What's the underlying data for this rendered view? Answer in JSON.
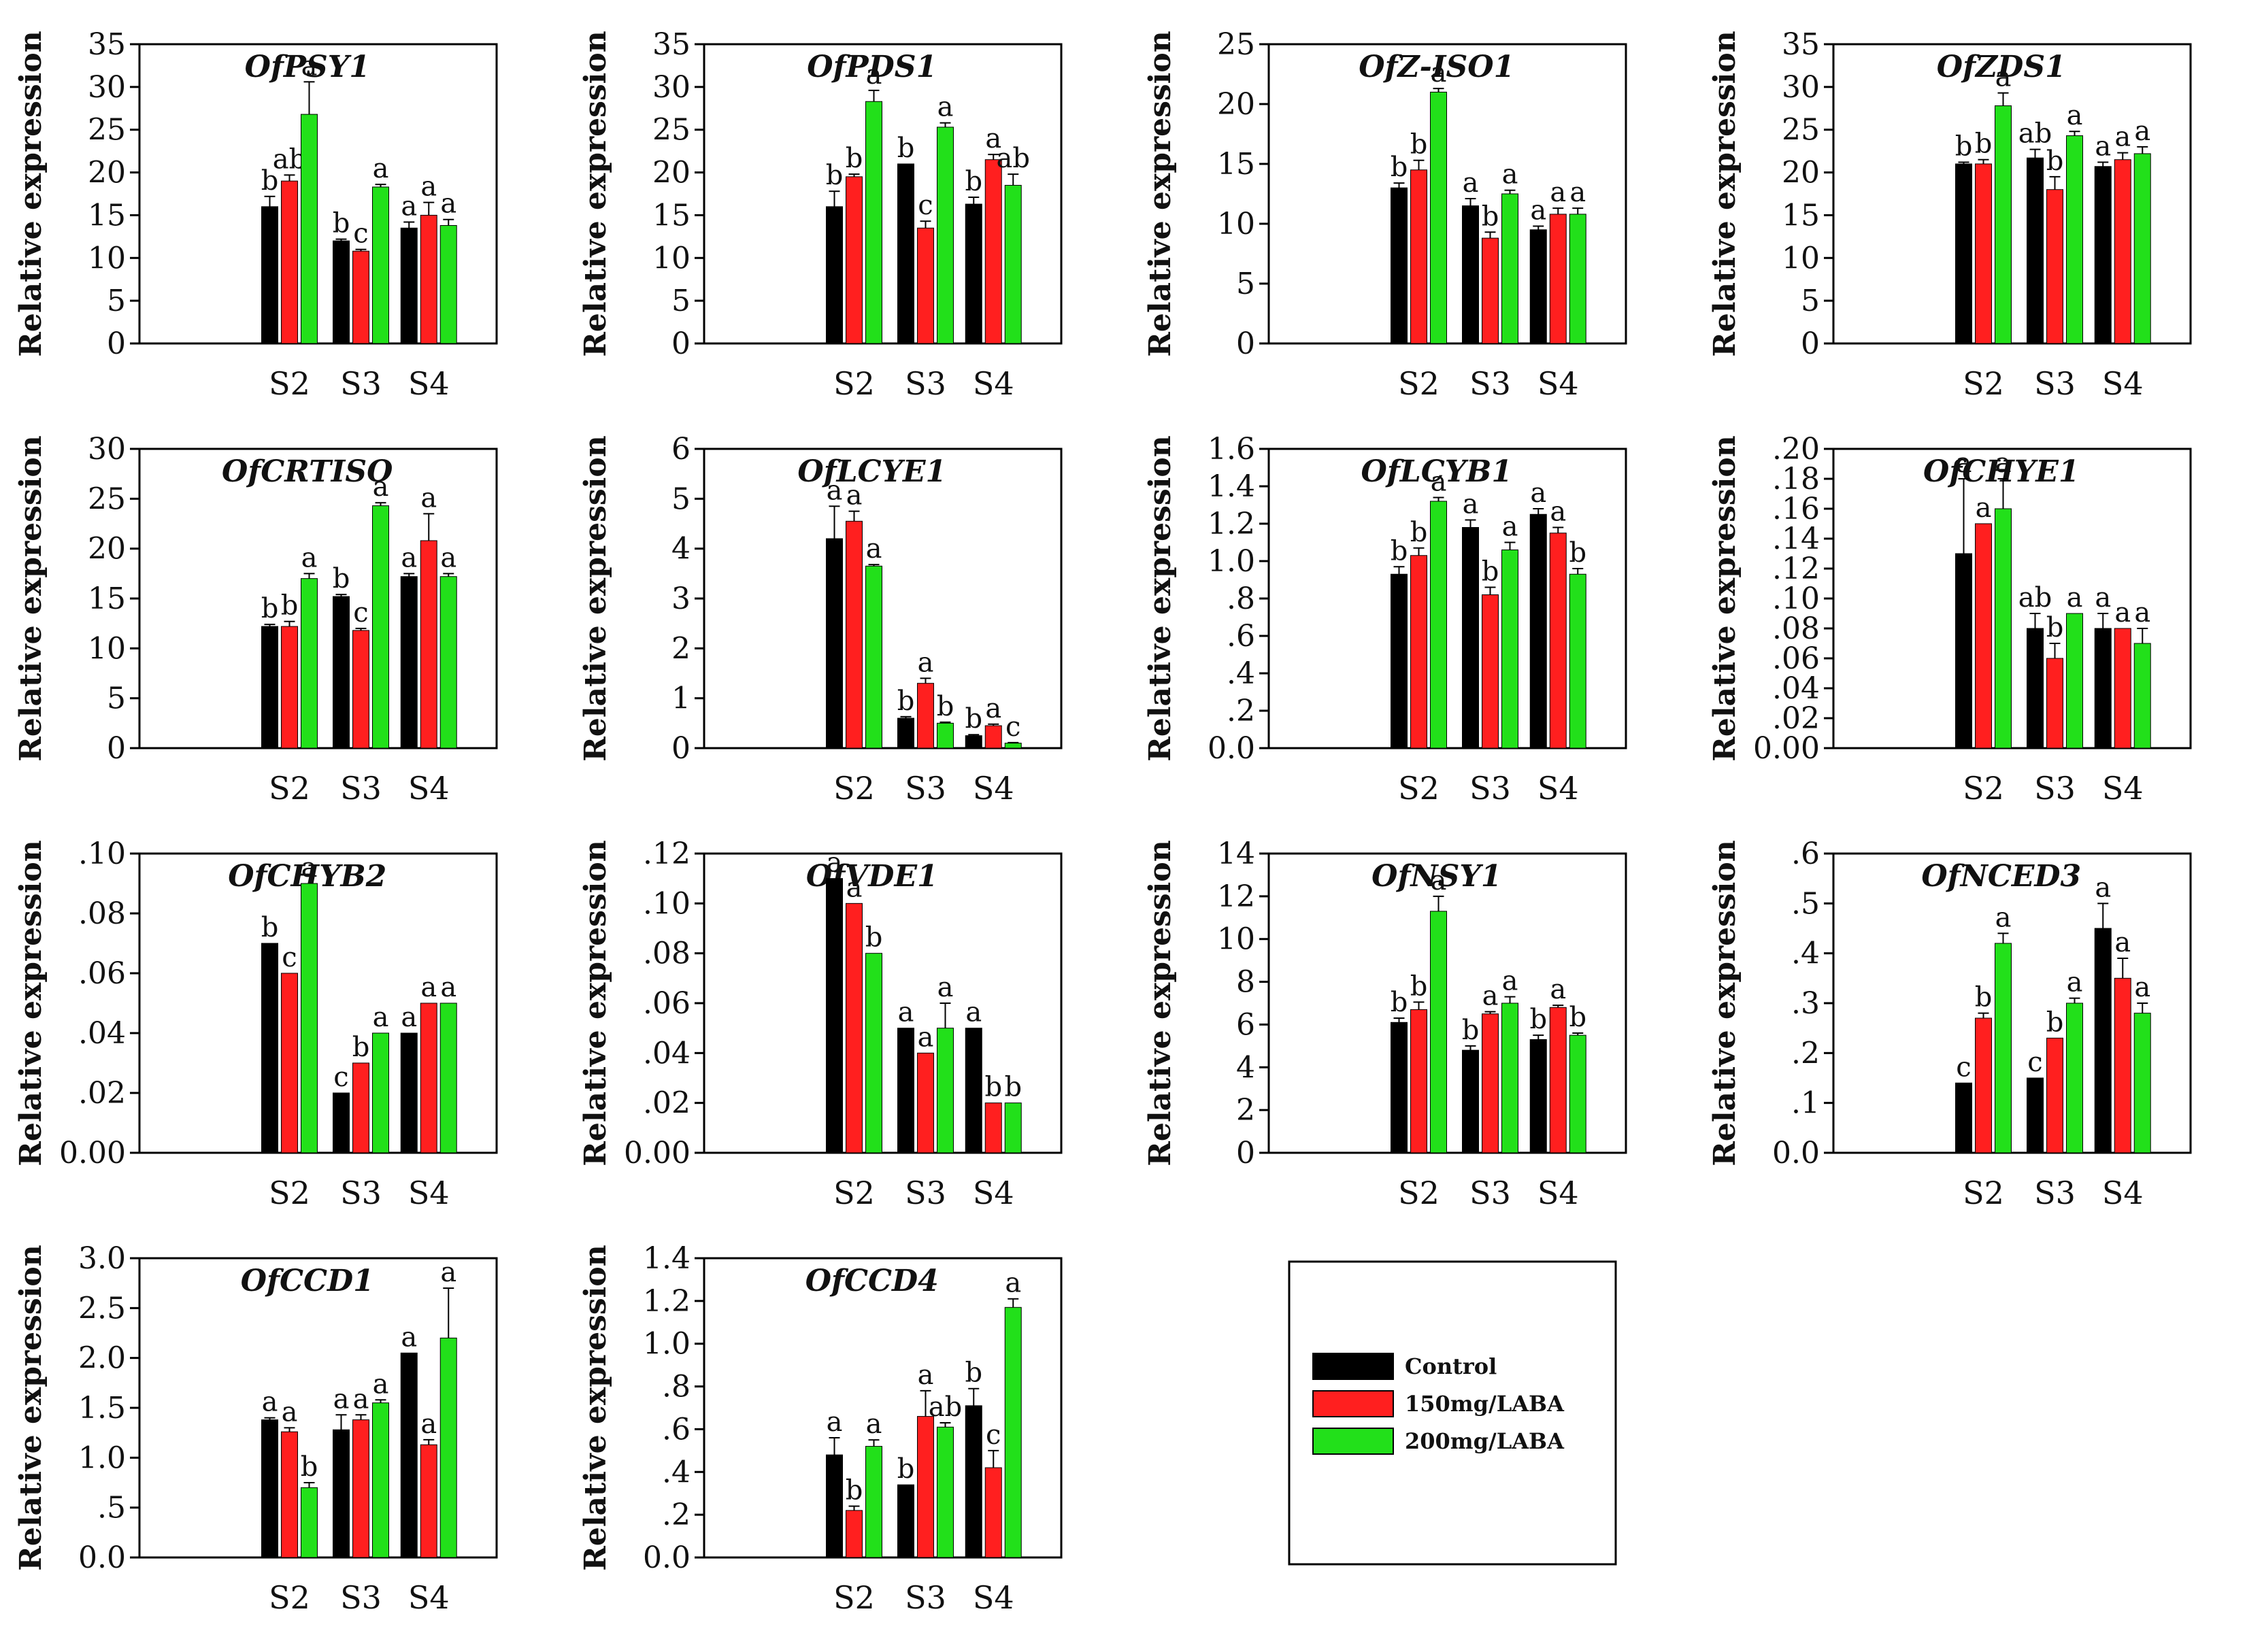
{
  "series_colors": {
    "Control": "#000000",
    "150mg/LABA": "#ff1f1f",
    "200mg/LABA": "#22e01a"
  },
  "legend": {
    "items": [
      {
        "label": "Control",
        "color": "#000000"
      },
      {
        "label": "150mg/LABA",
        "color": "#ff1f1f"
      },
      {
        "label": "200mg/LABA",
        "color": "#22e01a"
      }
    ]
  },
  "chart_data": [
    {
      "type": "bar",
      "title": "OfPSY1",
      "ylabel": "Relative expression",
      "categories": [
        "S2",
        "S3",
        "S4"
      ],
      "ylim": [
        0,
        35
      ],
      "yticks": [
        "0",
        "5",
        "10",
        "15",
        "20",
        "25",
        "30",
        "35"
      ],
      "series": [
        {
          "name": "Control",
          "values": [
            16,
            12,
            13.5
          ],
          "errors": [
            1.2,
            0.2,
            0.7
          ],
          "letters": [
            "b",
            "b",
            "a"
          ]
        },
        {
          "name": "150mg/LABA",
          "values": [
            19,
            10.8,
            15
          ],
          "errors": [
            0.7,
            0.2,
            1.5
          ],
          "letters": [
            "ab",
            "c",
            "a"
          ]
        },
        {
          "name": "200mg/LABA",
          "values": [
            26.8,
            18.3,
            13.8
          ],
          "errors": [
            3.8,
            0.3,
            0.7
          ],
          "letters": [
            "a",
            "a",
            "a"
          ]
        }
      ]
    },
    {
      "type": "bar",
      "title": "OfPDS1",
      "ylabel": "Relative expression",
      "categories": [
        "S2",
        "S3",
        "S4"
      ],
      "ylim": [
        0,
        35
      ],
      "yticks": [
        "0",
        "5",
        "10",
        "15",
        "20",
        "25",
        "30",
        "35"
      ],
      "series": [
        {
          "name": "Control",
          "values": [
            16,
            21,
            16.3
          ],
          "errors": [
            1.8,
            0,
            0.8
          ],
          "letters": [
            "b",
            "b",
            "b"
          ]
        },
        {
          "name": "150mg/LABA",
          "values": [
            19.5,
            13.5,
            21.5
          ],
          "errors": [
            0.3,
            0.8,
            0.6
          ],
          "letters": [
            "b",
            "c",
            "a"
          ]
        },
        {
          "name": "200mg/LABA",
          "values": [
            28.3,
            25.3,
            18.5
          ],
          "errors": [
            1.3,
            0.5,
            1.3
          ],
          "letters": [
            "a",
            "a",
            "ab"
          ]
        }
      ]
    },
    {
      "type": "bar",
      "title": "OfZ-ISO1",
      "ylabel": "Relative expression",
      "categories": [
        "S2",
        "S3",
        "S4"
      ],
      "ylim": [
        0,
        25
      ],
      "yticks": [
        "0",
        "5",
        "10",
        "15",
        "20",
        "25"
      ],
      "series": [
        {
          "name": "Control",
          "values": [
            13,
            11.5,
            9.5
          ],
          "errors": [
            0.4,
            0.6,
            0.3
          ],
          "letters": [
            "b",
            "a",
            "a"
          ]
        },
        {
          "name": "150mg/LABA",
          "values": [
            14.5,
            8.8,
            10.8
          ],
          "errors": [
            0.8,
            0.5,
            0.5
          ],
          "letters": [
            "b",
            "b",
            "a"
          ]
        },
        {
          "name": "200mg/LABA",
          "values": [
            21,
            12.5,
            10.8
          ],
          "errors": [
            0.3,
            0.3,
            0.5
          ],
          "letters": [
            "a",
            "a",
            "a"
          ]
        }
      ]
    },
    {
      "type": "bar",
      "title": "OfZDS1",
      "ylabel": "Relative expression",
      "categories": [
        "S2",
        "S3",
        "S4"
      ],
      "ylim": [
        0,
        35
      ],
      "yticks": [
        "0",
        "5",
        "10",
        "15",
        "20",
        "25",
        "30",
        "35"
      ],
      "series": [
        {
          "name": "Control",
          "values": [
            21,
            21.7,
            20.7
          ],
          "errors": [
            0.2,
            1,
            0.5
          ],
          "letters": [
            "b",
            "ab",
            "a"
          ]
        },
        {
          "name": "150mg/LABA",
          "values": [
            21,
            18,
            21.5
          ],
          "errors": [
            0.5,
            1.5,
            0.8
          ],
          "letters": [
            "b",
            "b",
            "a"
          ]
        },
        {
          "name": "200mg/LABA",
          "values": [
            27.8,
            24.3,
            22.2
          ],
          "errors": [
            1.5,
            0.5,
            0.8
          ],
          "letters": [
            "a",
            "a",
            "a"
          ]
        }
      ]
    },
    {
      "type": "bar",
      "title": "OfCRTISO",
      "ylabel": "Relative expression",
      "categories": [
        "S2",
        "S3",
        "S4"
      ],
      "ylim": [
        0,
        30
      ],
      "yticks": [
        "0",
        "5",
        "10",
        "15",
        "20",
        "25",
        "30"
      ],
      "series": [
        {
          "name": "Control",
          "values": [
            12.2,
            15.2,
            17.2
          ],
          "errors": [
            0.2,
            0.2,
            0.3
          ],
          "letters": [
            "b",
            "b",
            "a"
          ]
        },
        {
          "name": "150mg/LABA",
          "values": [
            12.2,
            11.8,
            20.8
          ],
          "errors": [
            0.5,
            0.2,
            2.7
          ],
          "letters": [
            "b",
            "c",
            "a"
          ]
        },
        {
          "name": "200mg/LABA",
          "values": [
            17,
            24.3,
            17.2
          ],
          "errors": [
            0.5,
            0.3,
            0.3
          ],
          "letters": [
            "a",
            "a",
            "a"
          ]
        }
      ]
    },
    {
      "type": "bar",
      "title": "OfLCYE1",
      "ylabel": "Relative expression",
      "categories": [
        "S2",
        "S3",
        "S4"
      ],
      "ylim": [
        0,
        6
      ],
      "yticks": [
        "0",
        "1",
        "2",
        "3",
        "4",
        "5",
        "6"
      ],
      "series": [
        {
          "name": "Control",
          "values": [
            4.2,
            0.6,
            0.25
          ],
          "errors": [
            0.65,
            0.03,
            0.02
          ],
          "letters": [
            "a",
            "b",
            "b"
          ]
        },
        {
          "name": "150mg/LABA",
          "values": [
            4.55,
            1.3,
            0.45
          ],
          "errors": [
            0.2,
            0.1,
            0.03
          ],
          "letters": [
            "a",
            "a",
            "a"
          ]
        },
        {
          "name": "200mg/LABA",
          "values": [
            3.65,
            0.5,
            0.1
          ],
          "errors": [
            0.03,
            0.02,
            0.01
          ],
          "letters": [
            "a",
            "b",
            "c"
          ]
        }
      ]
    },
    {
      "type": "bar",
      "title": "OfLCYB1",
      "ylabel": "Relative expression",
      "categories": [
        "S2",
        "S3",
        "S4"
      ],
      "ylim": [
        0,
        1.6
      ],
      "yticks": [
        "0.0",
        ".2",
        ".4",
        ".6",
        ".8",
        "1.0",
        "1.2",
        "1.4",
        "1.6"
      ],
      "series": [
        {
          "name": "Control",
          "values": [
            0.93,
            1.18,
            1.25
          ],
          "errors": [
            0.04,
            0.04,
            0.03
          ],
          "letters": [
            "b",
            "a",
            "a"
          ]
        },
        {
          "name": "150mg/LABA",
          "values": [
            1.03,
            0.82,
            1.15
          ],
          "errors": [
            0.04,
            0.04,
            0.03
          ],
          "letters": [
            "b",
            "b",
            "a"
          ]
        },
        {
          "name": "200mg/LABA",
          "values": [
            1.32,
            1.06,
            0.93
          ],
          "errors": [
            0.02,
            0.04,
            0.03
          ],
          "letters": [
            "a",
            "a",
            "b"
          ]
        }
      ]
    },
    {
      "type": "bar",
      "title": "OfCHYE1",
      "ylabel": "Relative expression",
      "categories": [
        "S2",
        "S3",
        "S4"
      ],
      "ylim": [
        0,
        0.2
      ],
      "yticks": [
        "0.00",
        ".02",
        ".04",
        ".06",
        ".08",
        ".10",
        ".12",
        ".14",
        ".16",
        ".18",
        ".20"
      ],
      "series": [
        {
          "name": "Control",
          "values": [
            0.13,
            0.08,
            0.08
          ],
          "errors": [
            0.05,
            0.01,
            0.01
          ],
          "letters": [
            "a",
            "ab",
            "a"
          ]
        },
        {
          "name": "150mg/LABA",
          "values": [
            0.15,
            0.06,
            0.08
          ],
          "errors": [
            0,
            0.01,
            0
          ],
          "letters": [
            "a",
            "b",
            "a"
          ]
        },
        {
          "name": "200mg/LABA",
          "values": [
            0.16,
            0.09,
            0.07
          ],
          "errors": [
            0.02,
            0,
            0.01
          ],
          "letters": [
            "a",
            "a",
            "a"
          ]
        }
      ]
    },
    {
      "type": "bar",
      "title": "OfCHYB2",
      "ylabel": "Relative expression",
      "categories": [
        "S2",
        "S3",
        "S4"
      ],
      "ylim": [
        0,
        0.1
      ],
      "yticks": [
        "0.00",
        ".02",
        ".04",
        ".06",
        ".08",
        ".10"
      ],
      "series": [
        {
          "name": "Control",
          "values": [
            0.07,
            0.02,
            0.04
          ],
          "errors": [
            0,
            0,
            0
          ],
          "letters": [
            "b",
            "c",
            "a"
          ]
        },
        {
          "name": "150mg/LABA",
          "values": [
            0.06,
            0.03,
            0.05
          ],
          "errors": [
            0,
            0,
            0
          ],
          "letters": [
            "c",
            "b",
            "a"
          ]
        },
        {
          "name": "200mg/LABA",
          "values": [
            0.09,
            0.04,
            0.05
          ],
          "errors": [
            0,
            0,
            0
          ],
          "letters": [
            "a",
            "a",
            "a"
          ]
        }
      ]
    },
    {
      "type": "bar",
      "title": "OfVDE1",
      "ylabel": "Relative expression",
      "categories": [
        "S2",
        "S3",
        "S4"
      ],
      "ylim": [
        0,
        0.12
      ],
      "yticks": [
        "0.00",
        ".02",
        ".04",
        ".06",
        ".08",
        ".10",
        ".12"
      ],
      "series": [
        {
          "name": "Control",
          "values": [
            0.11,
            0.05,
            0.05
          ],
          "errors": [
            0,
            0,
            0
          ],
          "letters": [
            "a",
            "a",
            "a"
          ]
        },
        {
          "name": "150mg/LABA",
          "values": [
            0.1,
            0.04,
            0.02
          ],
          "errors": [
            0,
            0,
            0
          ],
          "letters": [
            "a",
            "a",
            "b"
          ]
        },
        {
          "name": "200mg/LABA",
          "values": [
            0.08,
            0.05,
            0.02
          ],
          "errors": [
            0,
            0.01,
            0
          ],
          "letters": [
            "b",
            "a",
            "b"
          ]
        }
      ]
    },
    {
      "type": "bar",
      "title": "OfNSY1",
      "ylabel": "Relative expression",
      "categories": [
        "S2",
        "S3",
        "S4"
      ],
      "ylim": [
        0,
        14
      ],
      "yticks": [
        "0",
        "2",
        "4",
        "6",
        "8",
        "10",
        "12",
        "14"
      ],
      "series": [
        {
          "name": "Control",
          "values": [
            6.1,
            4.8,
            5.3
          ],
          "errors": [
            0.2,
            0.2,
            0.2
          ],
          "letters": [
            "b",
            "b",
            "b"
          ]
        },
        {
          "name": "150mg/LABA",
          "values": [
            6.7,
            6.5,
            6.8
          ],
          "errors": [
            0.35,
            0.1,
            0.1
          ],
          "letters": [
            "b",
            "a",
            "a"
          ]
        },
        {
          "name": "200mg/LABA",
          "values": [
            11.3,
            7,
            5.5
          ],
          "errors": [
            0.7,
            0.3,
            0.1
          ],
          "letters": [
            "a",
            "a",
            "b"
          ]
        }
      ]
    },
    {
      "type": "bar",
      "title": "OfNCED3",
      "ylabel": "Relative expression",
      "categories": [
        "S2",
        "S3",
        "S4"
      ],
      "ylim": [
        0,
        0.6
      ],
      "yticks": [
        "0.0",
        ".1",
        ".2",
        ".3",
        ".4",
        ".5",
        ".6"
      ],
      "series": [
        {
          "name": "Control",
          "values": [
            0.14,
            0.15,
            0.45
          ],
          "errors": [
            0,
            0,
            0.05
          ],
          "letters": [
            "c",
            "c",
            "a"
          ]
        },
        {
          "name": "150mg/LABA",
          "values": [
            0.27,
            0.23,
            0.35
          ],
          "errors": [
            0.01,
            0,
            0.04
          ],
          "letters": [
            "b",
            "b",
            "a"
          ]
        },
        {
          "name": "200mg/LABA",
          "values": [
            0.42,
            0.3,
            0.28
          ],
          "errors": [
            0.02,
            0.01,
            0.02
          ],
          "letters": [
            "a",
            "a",
            "a"
          ]
        }
      ]
    },
    {
      "type": "bar",
      "title": "OfCCD1",
      "ylabel": "Relative expression",
      "categories": [
        "S2",
        "S3",
        "S4"
      ],
      "ylim": [
        0,
        3
      ],
      "yticks": [
        "0.0",
        ".5",
        "1.0",
        "1.5",
        "2.0",
        "2.5",
        "3.0"
      ],
      "series": [
        {
          "name": "Control",
          "values": [
            1.38,
            1.28,
            2.05
          ],
          "errors": [
            0.02,
            0.15,
            0
          ],
          "letters": [
            "a",
            "a",
            "a"
          ]
        },
        {
          "name": "150mg/LABA",
          "values": [
            1.26,
            1.38,
            1.13
          ],
          "errors": [
            0.04,
            0.05,
            0.05
          ],
          "letters": [
            "a",
            "a",
            "a"
          ]
        },
        {
          "name": "200mg/LABA",
          "values": [
            0.7,
            1.55,
            2.2
          ],
          "errors": [
            0.05,
            0.03,
            0.5
          ],
          "letters": [
            "b",
            "a",
            "a"
          ]
        }
      ]
    },
    {
      "type": "bar",
      "title": "OfCCD4",
      "ylabel": "Relative expression",
      "categories": [
        "S2",
        "S3",
        "S4"
      ],
      "ylim": [
        0,
        1.4
      ],
      "yticks": [
        "0.0",
        ".2",
        ".4",
        ".6",
        ".8",
        "1.0",
        "1.2",
        "1.4"
      ],
      "series": [
        {
          "name": "Control",
          "values": [
            0.48,
            0.34,
            0.71
          ],
          "errors": [
            0.08,
            0,
            0.08
          ],
          "letters": [
            "a",
            "b",
            "b"
          ]
        },
        {
          "name": "150mg/LABA",
          "values": [
            0.22,
            0.66,
            0.42
          ],
          "errors": [
            0.02,
            0.12,
            0.08
          ],
          "letters": [
            "b",
            "a",
            "c"
          ]
        },
        {
          "name": "200mg/LABA",
          "values": [
            0.52,
            0.61,
            1.17
          ],
          "errors": [
            0.03,
            0.02,
            0.04
          ],
          "letters": [
            "a",
            "ab",
            "a"
          ]
        }
      ]
    }
  ]
}
